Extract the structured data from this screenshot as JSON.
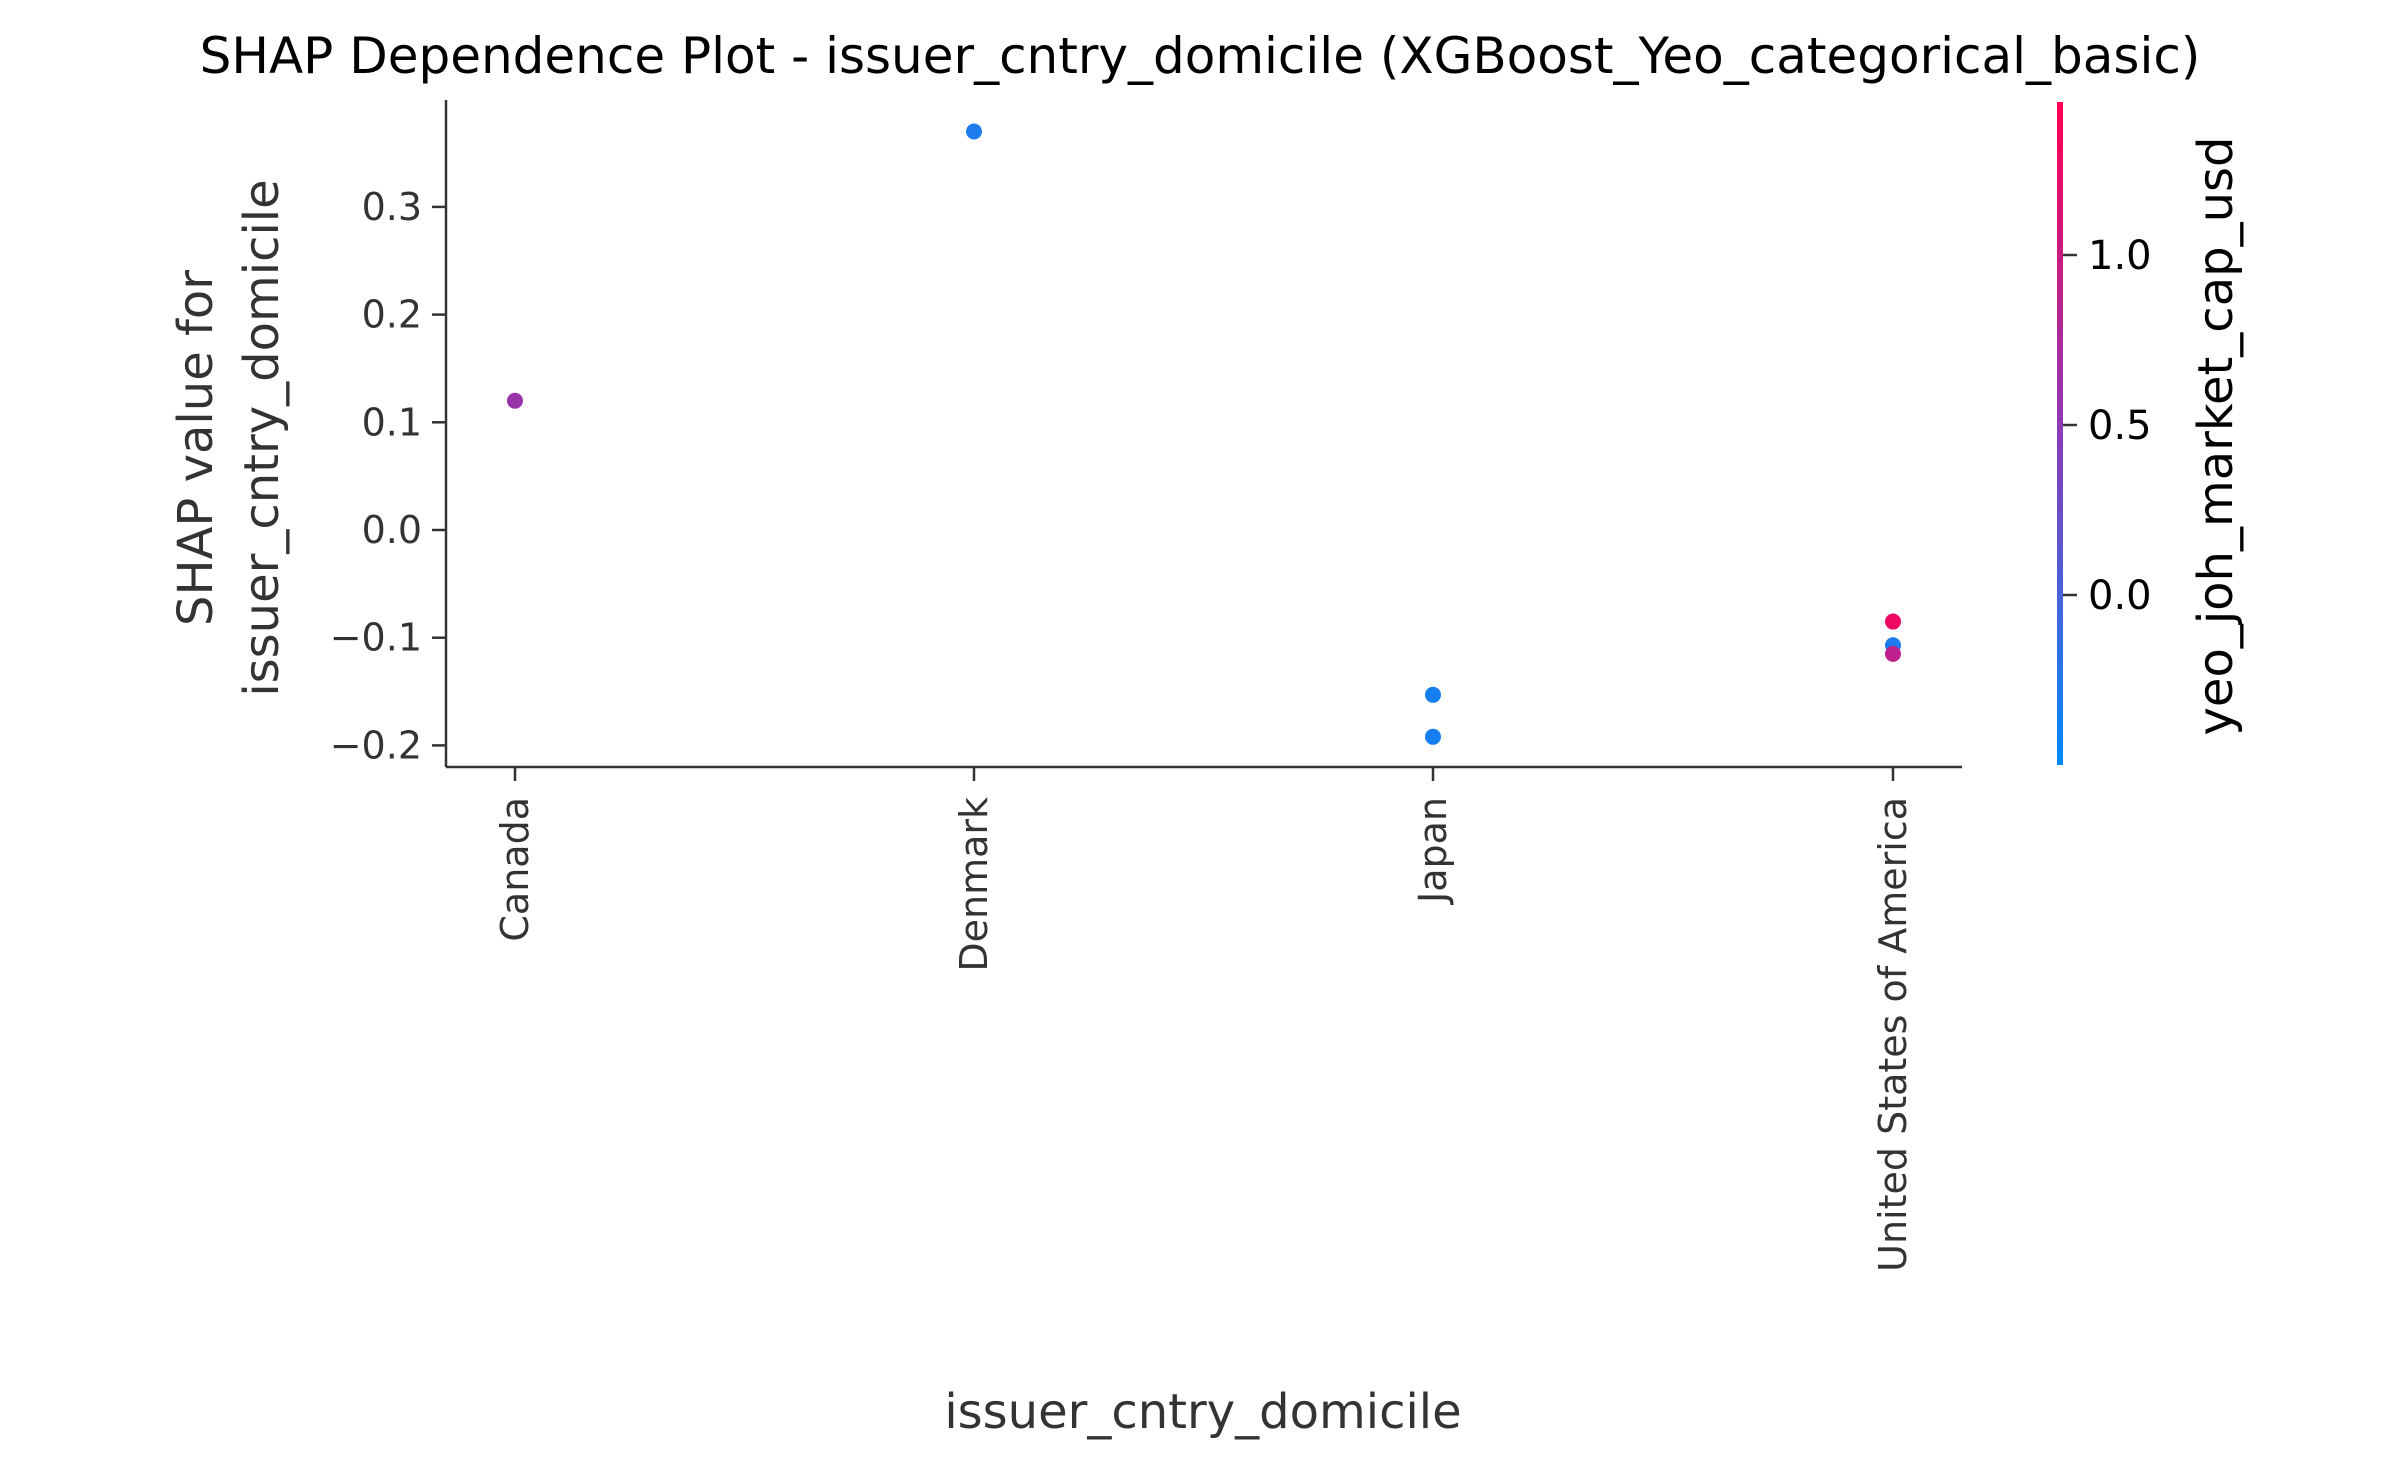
{
  "chart_data": {
    "type": "scatter",
    "title": "SHAP Dependence Plot - issuer_cntry_domicile (XGBoost_Yeo_categorical_basic)",
    "xlabel": "issuer_cntry_domicile",
    "ylabel_lines": [
      "SHAP value for",
      "issuer_cntry_domicile"
    ],
    "categories": [
      "Canada",
      "Denmark",
      "Japan",
      "United States of America"
    ],
    "ylim": [
      -0.22,
      0.4
    ],
    "yticks": [
      -0.2,
      -0.1,
      0.0,
      0.1,
      0.2,
      0.3
    ],
    "ytick_labels": [
      "−0.2",
      "−0.1",
      "0.0",
      "0.1",
      "0.2",
      "0.3"
    ],
    "points": [
      {
        "category": "Canada",
        "shap": 0.12,
        "color_value": 0.6
      },
      {
        "category": "Denmark",
        "shap": 0.37,
        "color_value": -0.3
      },
      {
        "category": "Japan",
        "shap": -0.153,
        "color_value": -0.35
      },
      {
        "category": "Japan",
        "shap": -0.192,
        "color_value": -0.35
      },
      {
        "category": "United States of America",
        "shap": -0.085,
        "color_value": 1.3
      },
      {
        "category": "United States of America",
        "shap": -0.107,
        "color_value": -0.3
      },
      {
        "category": "United States of America",
        "shap": -0.115,
        "color_value": 0.9
      }
    ],
    "colorbar": {
      "label": "yeo_joh_market_cap_usd",
      "range": [
        -0.5,
        1.45
      ],
      "ticks": [
        0.0,
        0.5,
        1.0
      ],
      "tick_labels": [
        "0.0",
        "0.5",
        "1.0"
      ],
      "low_color": "#008bfb",
      "mid_color": "#8b3bb7",
      "high_color": "#ff0052"
    },
    "grid": false
  }
}
